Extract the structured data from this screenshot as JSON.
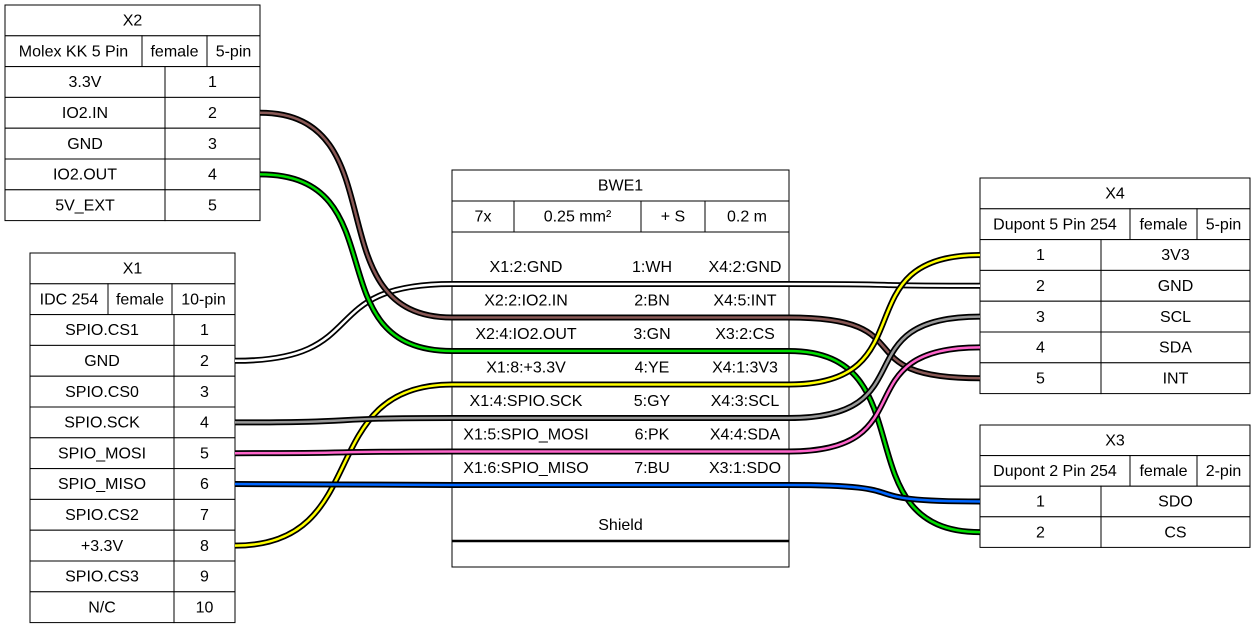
{
  "connectors": [
    {
      "name": "X2",
      "type": "Molex KK 5 Pin",
      "gender": "female",
      "pincount": "5-pin",
      "pins": [
        {
          "label": "3.3V",
          "pin": 1
        },
        {
          "label": "IO2.IN",
          "pin": 2
        },
        {
          "label": "GND",
          "pin": 3
        },
        {
          "label": "IO2.OUT",
          "pin": 4
        },
        {
          "label": "5V_EXT",
          "pin": 5
        }
      ]
    },
    {
      "name": "X1",
      "type": "IDC 254",
      "gender": "female",
      "pincount": "10-pin",
      "pins": [
        {
          "label": "SPIO.CS1",
          "pin": 1
        },
        {
          "label": "GND",
          "pin": 2
        },
        {
          "label": "SPIO.CS0",
          "pin": 3
        },
        {
          "label": "SPIO.SCK",
          "pin": 4
        },
        {
          "label": "SPIO_MOSI",
          "pin": 5
        },
        {
          "label": "SPIO_MISO",
          "pin": 6
        },
        {
          "label": "SPIO.CS2",
          "pin": 7
        },
        {
          "label": "+3.3V",
          "pin": 8
        },
        {
          "label": "SPIO.CS3",
          "pin": 9
        },
        {
          "label": "N/C",
          "pin": 10
        }
      ]
    },
    {
      "name": "X4",
      "type": "Dupont 5 Pin 254",
      "gender": "female",
      "pincount": "5-pin",
      "pins": [
        {
          "pin": 1,
          "label": "3V3"
        },
        {
          "pin": 2,
          "label": "GND"
        },
        {
          "pin": 3,
          "label": "SCL"
        },
        {
          "pin": 4,
          "label": "SDA"
        },
        {
          "pin": 5,
          "label": "INT"
        }
      ]
    },
    {
      "name": "X3",
      "type": "Dupont 2 Pin 254",
      "gender": "female",
      "pincount": "2-pin",
      "pins": [
        {
          "pin": 1,
          "label": "SDO"
        },
        {
          "pin": 2,
          "label": "CS"
        }
      ]
    }
  ],
  "cable": {
    "name": "BWE1",
    "count": "7x",
    "gauge": "0.25 mm²",
    "shield": "+ S",
    "length": "0.2 m",
    "wires": [
      {
        "from": "X1:2:GND",
        "wire": "1:WH",
        "to": "X4:2:GND",
        "color": "#ffffff"
      },
      {
        "from": "X2:2:IO2.IN",
        "wire": "2:BN",
        "to": "X4:5:INT",
        "color": "#895956"
      },
      {
        "from": "X2:4:IO2.OUT",
        "wire": "3:GN",
        "to": "X3:2:CS",
        "color": "#00dd00"
      },
      {
        "from": "X1:8:+3.3V",
        "wire": "4:YE",
        "to": "X4:1:3V3",
        "color": "#ffff00"
      },
      {
        "from": "X1:4:SPIO.SCK",
        "wire": "5:GY",
        "to": "X4:3:SCL",
        "color": "#999999"
      },
      {
        "from": "X1:5:SPIO_MOSI",
        "wire": "6:PK",
        "to": "X4:4:SDA",
        "color": "#ff66cc"
      },
      {
        "from": "X1:6:SPIO_MISO",
        "wire": "7:BU",
        "to": "X3:1:SDO",
        "color": "#0066ff"
      }
    ],
    "shield_label": "Shield"
  }
}
